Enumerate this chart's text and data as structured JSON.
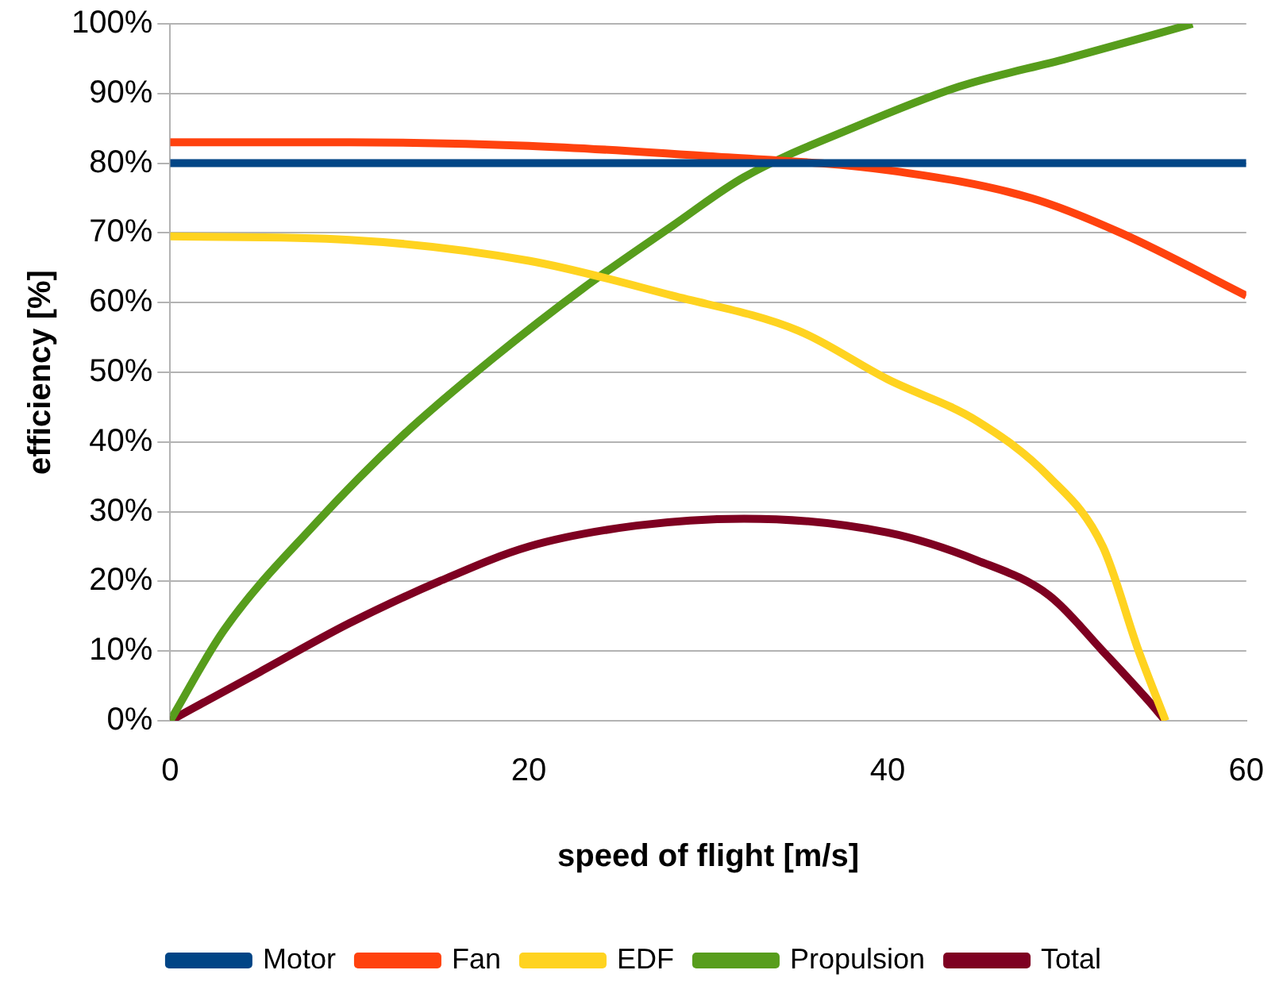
{
  "chart_data": {
    "type": "line",
    "xlabel": "speed of flight [m/s]",
    "ylabel": "efficiency [%]",
    "xlim": [
      0,
      60
    ],
    "xticks": [
      0,
      20,
      40,
      60
    ],
    "ylim": [
      0,
      100
    ],
    "yticks": [
      {
        "value": 0,
        "label": "0%"
      },
      {
        "value": 10,
        "label": "10%"
      },
      {
        "value": 20,
        "label": "20%"
      },
      {
        "value": 30,
        "label": "30%"
      },
      {
        "value": 40,
        "label": "40%"
      },
      {
        "value": 50,
        "label": "50%"
      },
      {
        "value": 60,
        "label": "60%"
      },
      {
        "value": 70,
        "label": "70%"
      },
      {
        "value": 80,
        "label": "80%"
      },
      {
        "value": 90,
        "label": "90%"
      },
      {
        "value": 100,
        "label": "100%"
      }
    ],
    "grid": "y",
    "legend": "bottom",
    "marker": "none",
    "line_style": "solid",
    "series": [
      {
        "name": "Motor",
        "color": "#004586",
        "x": [
          0,
          60
        ],
        "values": [
          80,
          80
        ]
      },
      {
        "name": "Fan",
        "color": "#ff420e",
        "x": [
          0,
          10,
          20,
          30,
          40,
          48,
          53,
          60
        ],
        "values": [
          83,
          83,
          82.5,
          81,
          79,
          75,
          70,
          61
        ]
      },
      {
        "name": "EDF",
        "color": "#ffd320",
        "x": [
          0,
          10,
          20,
          28,
          35,
          40,
          45,
          49,
          52,
          54,
          55.5
        ],
        "values": [
          69.5,
          69,
          66,
          61,
          56,
          49,
          43,
          35,
          25,
          10,
          0
        ]
      },
      {
        "name": "Propulsion",
        "color": "#579d1c",
        "x": [
          0,
          3,
          8,
          13,
          18,
          23,
          28,
          32,
          38,
          44,
          50,
          57
        ],
        "values": [
          0,
          13,
          28,
          41,
          52,
          62,
          71,
          78,
          85,
          91,
          95,
          100
        ]
      },
      {
        "name": "Total",
        "color": "#7e0021",
        "x": [
          0,
          5,
          10,
          15,
          20,
          26,
          32,
          40,
          45,
          49,
          52,
          54.5,
          55.5
        ],
        "values": [
          0,
          7,
          14,
          20,
          25,
          28,
          29,
          27,
          23,
          18,
          10,
          3,
          0
        ]
      }
    ]
  }
}
